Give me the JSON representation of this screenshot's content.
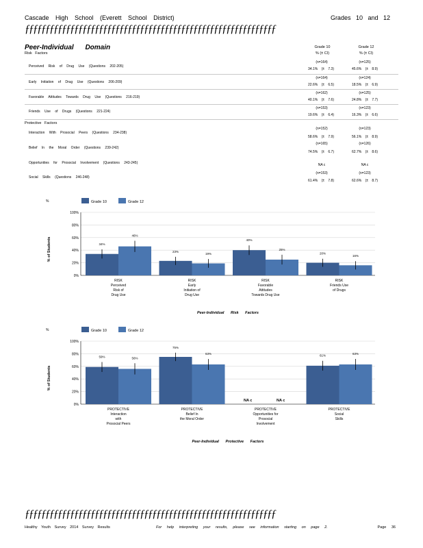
{
  "header": {
    "school": "Cascade High School (Everett School District)",
    "grades": "Grades 10 and 12",
    "rule": "ƒƒƒƒƒƒƒƒƒƒƒƒƒƒƒƒƒƒƒƒƒƒƒƒƒƒƒƒƒƒƒƒƒƒƒƒƒƒƒƒƒƒƒƒƒƒƒƒƒƒƒƒƒƒƒƒƒƒƒƒƒ"
  },
  "domain_title": "Peer-Individual Domain",
  "risk_heading": "Risk Factors",
  "protective_heading": "Protective Factors",
  "columns": {
    "g10_title": "Grade 10",
    "g10_sub": "% (± CI)",
    "g12_title": "Grade 12",
    "g12_sub": "% (± CI)"
  },
  "table_rows": [
    {
      "label": "Perceived Risk of Drug Use (Questions 202-205)",
      "g10_n": "(n=164)",
      "g10_v": "34.1% (± 7.3)",
      "g12_n": "(n=125)",
      "g12_v": "45.6% (± 8.9)"
    },
    {
      "label": "Early Initiation of Drug Use (Questions 206-209)",
      "g10_n": "(n=164)",
      "g10_v": "22.6% (± 6.5)",
      "g12_n": "(n=124)",
      "g12_v": "18.5% (± 6.9)"
    },
    {
      "label": "Favorable Attitudes Towards Drug Use (Questions 216-219)",
      "g10_n": "(n=162)",
      "g10_v": "40.1% (± 7.6)",
      "g12_n": "(n=125)",
      "g12_v": "24.8% (± 7.7)"
    },
    {
      "label": "Friends Use of Drugs (Questions 221-224)",
      "g10_n": "(n=153)",
      "g10_v": "19.6% (± 6.4)",
      "g12_n": "(n=123)",
      "g12_v": "16.3% (± 6.6)"
    },
    {
      "label": "Interaction With Prosocial Peers (Questions 234-238)",
      "g10_n": "(n=152)",
      "g10_v": "58.6% (± 7.9)",
      "g12_n": "(n=123)",
      "g12_v": "56.1% (± 8.9)"
    },
    {
      "label": "Belief In the Moral Order (Questions 239-242)",
      "g10_n": "(n=165)",
      "g10_v": "74.5% (± 6.7)",
      "g12_n": "(n=126)",
      "g12_v": "62.7% (± 8.6)"
    },
    {
      "label": "Opportunities for Prosocial Involvement (Questions 243-245)",
      "g10_n": "NA c",
      "g10_v": "",
      "g12_n": "NA c",
      "g12_v": ""
    },
    {
      "label": "Social Skills (Questions 246-248)",
      "g10_n": "(n=153)",
      "g10_v": "61.4% (± 7.8)",
      "g12_n": "(n=123)",
      "g12_v": "62.6% (± 8.7)"
    }
  ],
  "chart_data": [
    {
      "type": "bar",
      "ylabel": "% of Students",
      "ylim": [
        0,
        100
      ],
      "yticks": [
        "0%",
        "20%",
        "40%",
        "60%",
        "80%",
        "100%"
      ],
      "xlabel": "Peer-Individual Risk Factors",
      "categories": [
        "RISK Perceived Risk of Drug Use",
        "RISK Early Initiation of Drug Use",
        "RISK Favorable Attitudes Towards Drug Use",
        "RISK Friends Use of Drugs"
      ],
      "category_lines": [
        [
          "RISK",
          "Perceived",
          "Risk of",
          "Drug Use"
        ],
        [
          "RISK",
          "Early",
          "Initiation of",
          "Drug Use"
        ],
        [
          "RISK",
          "Favorable",
          "Attitudes",
          "Towards Drug Use"
        ],
        [
          "RISK",
          "Friends Use",
          "of Drugs"
        ]
      ],
      "series": [
        {
          "name": "Grade 10",
          "color": "#3b5e92",
          "values": [
            34,
            23,
            40,
            20
          ],
          "ci": [
            7.3,
            6.5,
            7.6,
            6.4
          ],
          "labels": [
            "34%",
            "23%",
            "40%",
            "20%"
          ]
        },
        {
          "name": "Grade 12",
          "color": "#4a76b0",
          "values": [
            46,
            19,
            25,
            16
          ],
          "ci": [
            8.9,
            6.9,
            7.7,
            6.6
          ],
          "labels": [
            "46%",
            "19%",
            "25%",
            "16%"
          ]
        }
      ]
    },
    {
      "type": "bar",
      "ylabel": "% of Students",
      "ylim": [
        0,
        100
      ],
      "yticks": [
        "0%",
        "20%",
        "40%",
        "60%",
        "80%",
        "100%"
      ],
      "xlabel": "Peer-Individual Protective Factors",
      "categories": [
        "PROTECTIVE Interaction with Prosocial Peers",
        "PROTECTIVE Belief In the Moral Order",
        "PROTECTIVE Opportunities for Prosocial Involvement",
        "PROTECTIVE Social Skills"
      ],
      "category_lines": [
        [
          "PROTECTIVE",
          "Interaction",
          "with",
          "Prosocial Peers"
        ],
        [
          "PROTECTIVE",
          "Belief In",
          "the Moral Order"
        ],
        [
          "PROTECTIVE",
          "Opportunities for",
          "Prosocial",
          "Involvement"
        ],
        [
          "PROTECTIVE",
          "Social",
          "Skills"
        ]
      ],
      "series": [
        {
          "name": "Grade 10",
          "color": "#3b5e92",
          "values": [
            59,
            75,
            null,
            61
          ],
          "ci": [
            7.9,
            6.7,
            null,
            7.8
          ],
          "labels": [
            "59%",
            "75%",
            "NA c",
            "61%"
          ]
        },
        {
          "name": "Grade 12",
          "color": "#4a76b0",
          "values": [
            56,
            63,
            null,
            63
          ],
          "ci": [
            8.9,
            8.6,
            null,
            8.7
          ],
          "labels": [
            "56%",
            "63%",
            "NA c",
            "63%"
          ]
        }
      ]
    }
  ],
  "footer": {
    "left": "Healthy Youth Survey 2014 Survey Results",
    "middle": "For help interpreting your results, please see information starting on page 2.",
    "page": "Page 36"
  }
}
